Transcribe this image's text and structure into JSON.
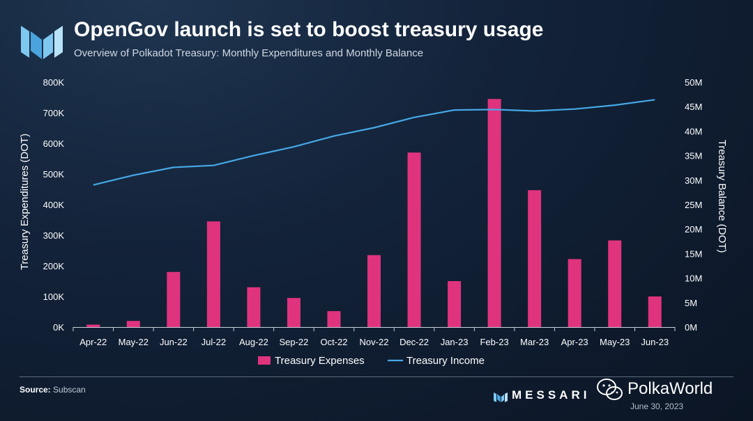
{
  "header": {
    "title": "OpenGov launch is set to boost treasury usage",
    "subtitle": "Overview of Polkadot Treasury: Monthly Expenditures and Monthly Balance"
  },
  "footer": {
    "source_label": "Source:",
    "source_value": "Subscan",
    "brand": "MESSARI",
    "watermark": "PolkaWorld",
    "date": "June 30, 2023"
  },
  "colors": {
    "bar": "#e0337e",
    "line": "#46a8e6",
    "text": "#ffffff"
  },
  "chart_data": {
    "type": "bar",
    "categories": [
      "Apr-22",
      "May-22",
      "Jun-22",
      "Jul-22",
      "Aug-22",
      "Sep-22",
      "Oct-22",
      "Nov-22",
      "Dec-22",
      "Jan-23",
      "Feb-23",
      "Mar-23",
      "Apr-23",
      "May-23",
      "Jun-23"
    ],
    "series": [
      {
        "name": "Treasury Expenses",
        "type": "bar",
        "axis": "left",
        "values": [
          8000,
          20000,
          180000,
          345000,
          130000,
          95000,
          52000,
          235000,
          570000,
          150000,
          745000,
          447000,
          222000,
          283000,
          100000
        ]
      },
      {
        "name": "Treasury Income",
        "type": "line",
        "axis": "right",
        "values": [
          29000000,
          31000000,
          32600000,
          33000000,
          35000000,
          36800000,
          39000000,
          40700000,
          42800000,
          44300000,
          44400000,
          44100000,
          44500000,
          45300000,
          46400000
        ]
      }
    ],
    "ylabel_left": "Treasury Expenditures (DOT)",
    "ylabel_right": "Treasury Balance (DOT)",
    "ylim_left": [
      0,
      800000
    ],
    "ylim_right": [
      0,
      50000000
    ],
    "yticks_left": [
      "0K",
      "100K",
      "200K",
      "300K",
      "400K",
      "500K",
      "600K",
      "700K",
      "800K"
    ],
    "yticks_right": [
      "0M",
      "5M",
      "10M",
      "15M",
      "20M",
      "25M",
      "30M",
      "35M",
      "40M",
      "45M",
      "50M"
    ],
    "grid": false,
    "legend_position": "bottom-center"
  }
}
